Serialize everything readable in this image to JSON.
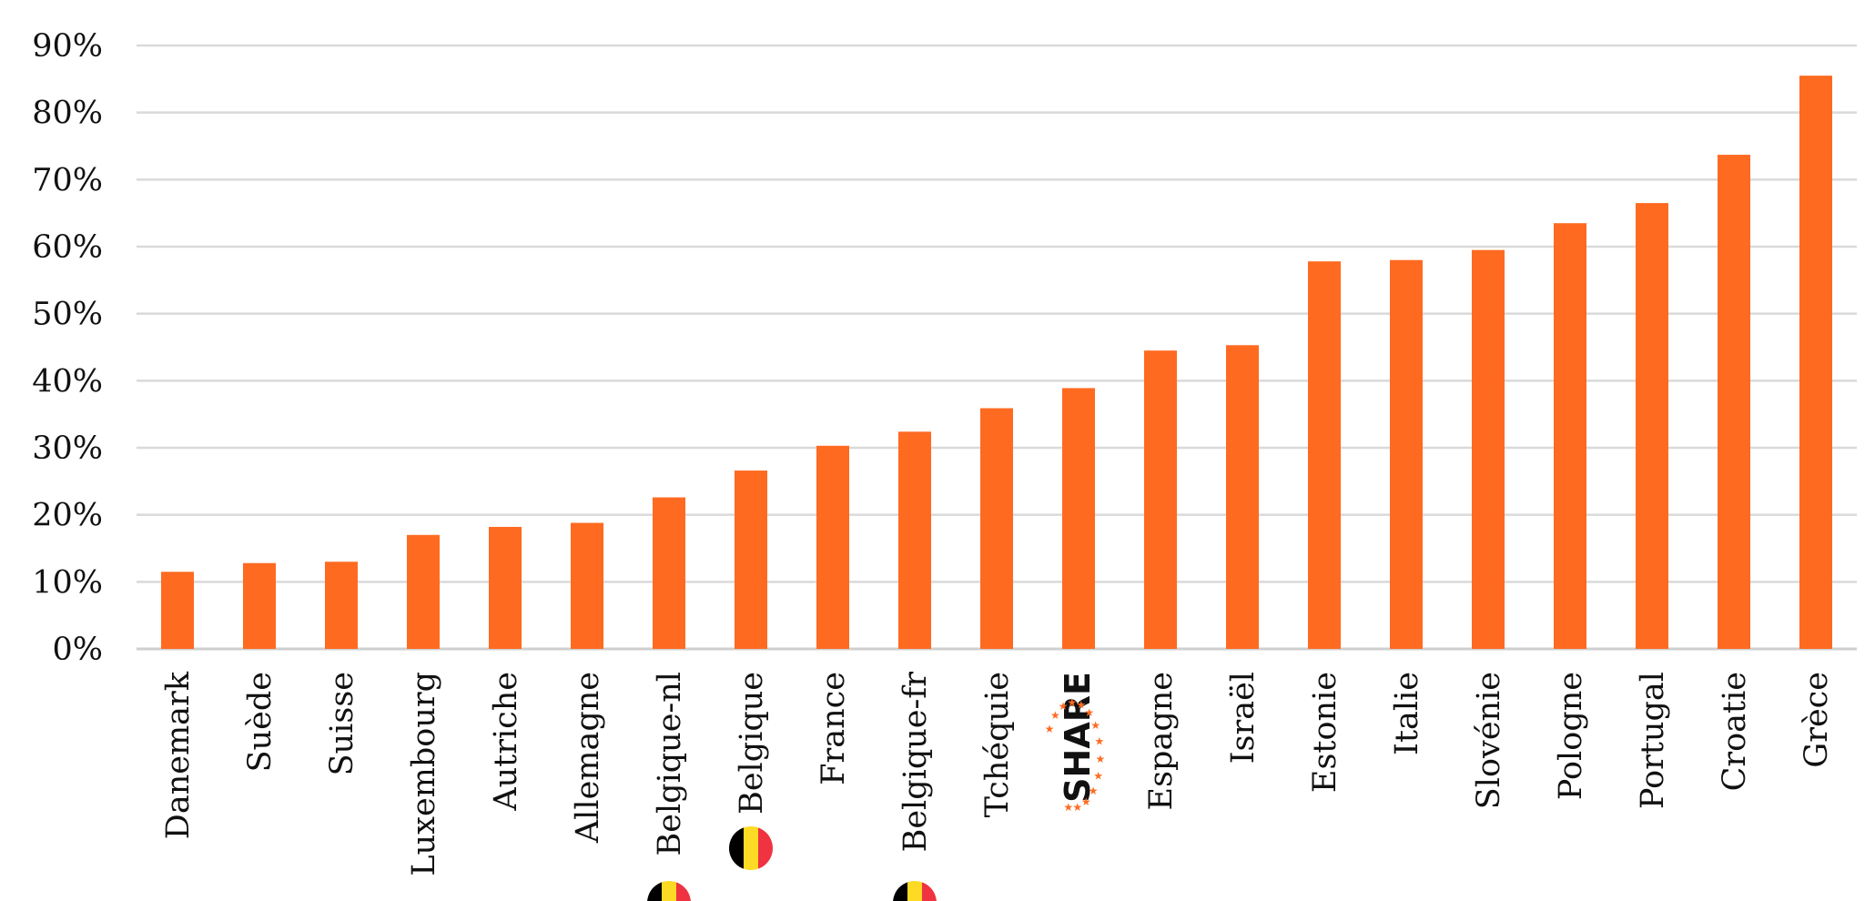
{
  "chart_data": {
    "type": "bar",
    "title": "",
    "xlabel": "",
    "ylabel": "",
    "ylim": [
      0,
      90
    ],
    "yticks": [
      "0%",
      "10%",
      "20%",
      "30%",
      "40%",
      "50%",
      "60%",
      "70%",
      "80%",
      "90%"
    ],
    "grid": true,
    "legend": "none",
    "bar_color": "#ff6a21",
    "categories": [
      {
        "label": "Danemark",
        "value": 11.5,
        "icon": ""
      },
      {
        "label": "Suède",
        "value": 12.8,
        "icon": ""
      },
      {
        "label": "Suisse",
        "value": 13.0,
        "icon": ""
      },
      {
        "label": "Luxembourg",
        "value": 17.0,
        "icon": ""
      },
      {
        "label": "Autriche",
        "value": 18.2,
        "icon": ""
      },
      {
        "label": "Allemagne",
        "value": 18.8,
        "icon": ""
      },
      {
        "label": "Belgique-nl",
        "value": 22.6,
        "icon": "belgium-flag-icon"
      },
      {
        "label": "Belgique",
        "value": 26.6,
        "icon": "belgium-flag-icon"
      },
      {
        "label": "France",
        "value": 30.3,
        "icon": ""
      },
      {
        "label": "Belgique-fr",
        "value": 32.4,
        "icon": "belgium-flag-icon"
      },
      {
        "label": "Tchéquie",
        "value": 35.9,
        "icon": ""
      },
      {
        "label": "SHARE",
        "value": 38.9,
        "icon": "share-logo-icon"
      },
      {
        "label": "Espagne",
        "value": 44.5,
        "icon": ""
      },
      {
        "label": "Israël",
        "value": 45.3,
        "icon": ""
      },
      {
        "label": "Estonie",
        "value": 57.8,
        "icon": ""
      },
      {
        "label": "Italie",
        "value": 58.0,
        "icon": ""
      },
      {
        "label": "Slovénie",
        "value": 59.5,
        "icon": ""
      },
      {
        "label": "Pologne",
        "value": 63.5,
        "icon": ""
      },
      {
        "label": "Portugal",
        "value": 66.5,
        "icon": ""
      },
      {
        "label": "Croatie",
        "value": 73.7,
        "icon": ""
      },
      {
        "label": "Grèce",
        "value": 85.5,
        "icon": ""
      }
    ],
    "flag_colors": [
      "#000000",
      "#fdda24",
      "#ef3340"
    ],
    "share_star_color": "#ff6a21"
  }
}
